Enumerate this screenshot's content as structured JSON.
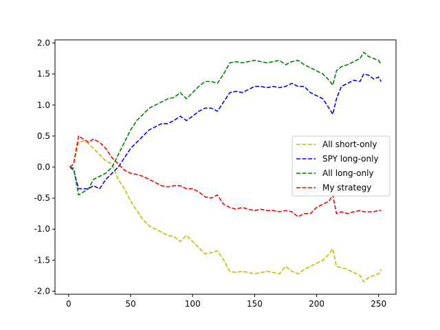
{
  "chart_data": {
    "type": "line",
    "title": "",
    "xlabel": "",
    "ylabel": "",
    "xlim": [
      -11,
      264
    ],
    "ylim": [
      -2.05,
      2.05
    ],
    "xticks": [
      0,
      50,
      100,
      150,
      200,
      250
    ],
    "yticks": [
      -2.0,
      -1.5,
      -1.0,
      -0.5,
      0.0,
      0.5,
      1.0,
      1.5,
      2.0
    ],
    "xtick_labels": [
      "0",
      "50",
      "100",
      "150",
      "200",
      "250"
    ],
    "ytick_labels": [
      "-2.0",
      "-1.5",
      "-1.0",
      "-0.5",
      "0.0",
      "0.5",
      "1.0",
      "1.5",
      "2.0"
    ],
    "grid": false,
    "legend_position": "center-right",
    "series": [
      {
        "name": "All short-only",
        "color": "#bfbf00",
        "style": "dashed",
        "points": [
          [
            1,
            0.0
          ],
          [
            4,
            0.05
          ],
          [
            8,
            0.4
          ],
          [
            12,
            0.42
          ],
          [
            16,
            0.38
          ],
          [
            20,
            0.3
          ],
          [
            25,
            0.2
          ],
          [
            30,
            0.1
          ],
          [
            35,
            0.05
          ],
          [
            40,
            -0.2
          ],
          [
            45,
            -0.35
          ],
          [
            50,
            -0.55
          ],
          [
            55,
            -0.7
          ],
          [
            60,
            -0.85
          ],
          [
            65,
            -0.95
          ],
          [
            70,
            -1.0
          ],
          [
            75,
            -1.05
          ],
          [
            80,
            -1.1
          ],
          [
            85,
            -1.12
          ],
          [
            90,
            -1.2
          ],
          [
            95,
            -1.1
          ],
          [
            100,
            -1.2
          ],
          [
            105,
            -1.3
          ],
          [
            110,
            -1.4
          ],
          [
            115,
            -1.38
          ],
          [
            120,
            -1.35
          ],
          [
            125,
            -1.5
          ],
          [
            130,
            -1.68
          ],
          [
            135,
            -1.7
          ],
          [
            140,
            -1.68
          ],
          [
            145,
            -1.7
          ],
          [
            150,
            -1.72
          ],
          [
            155,
            -1.7
          ],
          [
            160,
            -1.68
          ],
          [
            165,
            -1.7
          ],
          [
            170,
            -1.72
          ],
          [
            175,
            -1.6
          ],
          [
            180,
            -1.68
          ],
          [
            185,
            -1.72
          ],
          [
            190,
            -1.65
          ],
          [
            195,
            -1.6
          ],
          [
            200,
            -1.55
          ],
          [
            205,
            -1.5
          ],
          [
            210,
            -1.4
          ],
          [
            213,
            -1.32
          ],
          [
            216,
            -1.6
          ],
          [
            220,
            -1.62
          ],
          [
            225,
            -1.65
          ],
          [
            230,
            -1.7
          ],
          [
            235,
            -1.75
          ],
          [
            238,
            -1.85
          ],
          [
            242,
            -1.78
          ],
          [
            246,
            -1.75
          ],
          [
            250,
            -1.72
          ],
          [
            252,
            -1.65
          ]
        ]
      },
      {
        "name": "SPY long-only",
        "color": "#0000ff",
        "style": "dashed",
        "points": [
          [
            1,
            0.0
          ],
          [
            4,
            -0.05
          ],
          [
            8,
            -0.35
          ],
          [
            12,
            -0.35
          ],
          [
            16,
            -0.35
          ],
          [
            20,
            -0.3
          ],
          [
            25,
            -0.35
          ],
          [
            30,
            -0.2
          ],
          [
            35,
            -0.1
          ],
          [
            40,
            0.0
          ],
          [
            45,
            0.15
          ],
          [
            50,
            0.3
          ],
          [
            55,
            0.4
          ],
          [
            60,
            0.5
          ],
          [
            65,
            0.6
          ],
          [
            70,
            0.65
          ],
          [
            75,
            0.7
          ],
          [
            80,
            0.7
          ],
          [
            85,
            0.75
          ],
          [
            90,
            0.82
          ],
          [
            95,
            0.75
          ],
          [
            100,
            0.82
          ],
          [
            105,
            0.9
          ],
          [
            110,
            0.95
          ],
          [
            115,
            0.95
          ],
          [
            120,
            0.9
          ],
          [
            125,
            1.05
          ],
          [
            130,
            1.2
          ],
          [
            135,
            1.22
          ],
          [
            140,
            1.2
          ],
          [
            145,
            1.25
          ],
          [
            150,
            1.3
          ],
          [
            155,
            1.3
          ],
          [
            160,
            1.28
          ],
          [
            165,
            1.3
          ],
          [
            170,
            1.28
          ],
          [
            175,
            1.3
          ],
          [
            180,
            1.35
          ],
          [
            185,
            1.3
          ],
          [
            190,
            1.3
          ],
          [
            195,
            1.2
          ],
          [
            200,
            1.15
          ],
          [
            205,
            1.1
          ],
          [
            210,
            0.95
          ],
          [
            213,
            0.85
          ],
          [
            216,
            1.1
          ],
          [
            220,
            1.3
          ],
          [
            225,
            1.35
          ],
          [
            230,
            1.4
          ],
          [
            235,
            1.38
          ],
          [
            238,
            1.5
          ],
          [
            242,
            1.48
          ],
          [
            246,
            1.42
          ],
          [
            250,
            1.45
          ],
          [
            252,
            1.38
          ]
        ]
      },
      {
        "name": "All long-only",
        "color": "#008000",
        "style": "dashed",
        "points": [
          [
            1,
            0.0
          ],
          [
            4,
            -0.02
          ],
          [
            8,
            -0.45
          ],
          [
            12,
            -0.4
          ],
          [
            16,
            -0.35
          ],
          [
            20,
            -0.2
          ],
          [
            25,
            -0.15
          ],
          [
            30,
            -0.1
          ],
          [
            35,
            0.0
          ],
          [
            40,
            0.2
          ],
          [
            45,
            0.4
          ],
          [
            50,
            0.6
          ],
          [
            55,
            0.75
          ],
          [
            60,
            0.85
          ],
          [
            65,
            0.95
          ],
          [
            70,
            1.0
          ],
          [
            75,
            1.05
          ],
          [
            80,
            1.1
          ],
          [
            85,
            1.12
          ],
          [
            90,
            1.2
          ],
          [
            95,
            1.1
          ],
          [
            100,
            1.2
          ],
          [
            105,
            1.3
          ],
          [
            110,
            1.38
          ],
          [
            115,
            1.38
          ],
          [
            120,
            1.35
          ],
          [
            125,
            1.5
          ],
          [
            130,
            1.68
          ],
          [
            135,
            1.7
          ],
          [
            140,
            1.68
          ],
          [
            145,
            1.7
          ],
          [
            150,
            1.72
          ],
          [
            155,
            1.7
          ],
          [
            160,
            1.68
          ],
          [
            165,
            1.7
          ],
          [
            170,
            1.72
          ],
          [
            175,
            1.65
          ],
          [
            180,
            1.7
          ],
          [
            185,
            1.72
          ],
          [
            190,
            1.65
          ],
          [
            195,
            1.6
          ],
          [
            200,
            1.55
          ],
          [
            205,
            1.5
          ],
          [
            210,
            1.4
          ],
          [
            213,
            1.32
          ],
          [
            216,
            1.55
          ],
          [
            220,
            1.62
          ],
          [
            225,
            1.65
          ],
          [
            230,
            1.7
          ],
          [
            235,
            1.75
          ],
          [
            238,
            1.85
          ],
          [
            242,
            1.78
          ],
          [
            246,
            1.75
          ],
          [
            250,
            1.72
          ],
          [
            252,
            1.65
          ]
        ]
      },
      {
        "name": "My strategy",
        "color": "#ff0000",
        "style": "dashed",
        "points": [
          [
            1,
            0.0
          ],
          [
            4,
            0.05
          ],
          [
            8,
            0.5
          ],
          [
            12,
            0.45
          ],
          [
            16,
            0.4
          ],
          [
            20,
            0.45
          ],
          [
            25,
            0.4
          ],
          [
            30,
            0.3
          ],
          [
            35,
            0.15
          ],
          [
            40,
            0.05
          ],
          [
            45,
            -0.05
          ],
          [
            50,
            -0.1
          ],
          [
            55,
            -0.12
          ],
          [
            60,
            -0.15
          ],
          [
            65,
            -0.2
          ],
          [
            70,
            -0.25
          ],
          [
            75,
            -0.3
          ],
          [
            80,
            -0.32
          ],
          [
            85,
            -0.3
          ],
          [
            90,
            -0.3
          ],
          [
            95,
            -0.35
          ],
          [
            100,
            -0.35
          ],
          [
            105,
            -0.4
          ],
          [
            110,
            -0.48
          ],
          [
            115,
            -0.5
          ],
          [
            120,
            -0.45
          ],
          [
            125,
            -0.6
          ],
          [
            130,
            -0.65
          ],
          [
            135,
            -0.68
          ],
          [
            140,
            -0.65
          ],
          [
            145,
            -0.68
          ],
          [
            150,
            -0.7
          ],
          [
            155,
            -0.68
          ],
          [
            160,
            -0.7
          ],
          [
            165,
            -0.7
          ],
          [
            170,
            -0.72
          ],
          [
            175,
            -0.7
          ],
          [
            180,
            -0.72
          ],
          [
            185,
            -0.8
          ],
          [
            190,
            -0.75
          ],
          [
            195,
            -0.75
          ],
          [
            200,
            -0.65
          ],
          [
            205,
            -0.6
          ],
          [
            210,
            -0.55
          ],
          [
            213,
            -0.45
          ],
          [
            216,
            -0.75
          ],
          [
            220,
            -0.72
          ],
          [
            225,
            -0.75
          ],
          [
            230,
            -0.72
          ],
          [
            235,
            -0.7
          ],
          [
            238,
            -0.72
          ],
          [
            242,
            -0.72
          ],
          [
            246,
            -0.72
          ],
          [
            250,
            -0.7
          ],
          [
            252,
            -0.7
          ]
        ]
      }
    ]
  }
}
